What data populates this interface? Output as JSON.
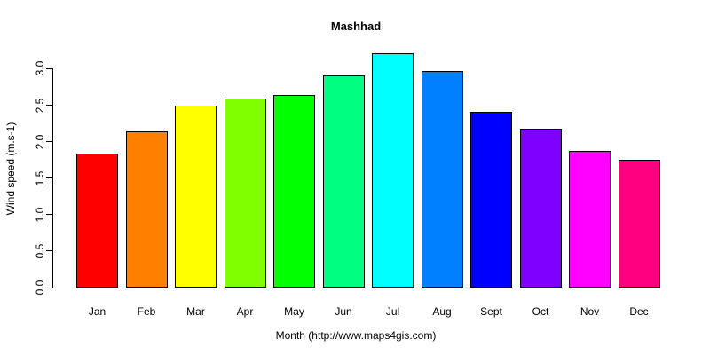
{
  "chart_data": {
    "type": "bar",
    "title": "Mashhad",
    "xlabel": "Month (http://www.maps4gis.com)",
    "ylabel": "Wind speed (m.s-1)",
    "categories": [
      "Jan",
      "Feb",
      "Mar",
      "Apr",
      "May",
      "Jun",
      "Jul",
      "Aug",
      "Sept",
      "Oct",
      "Nov",
      "Dec"
    ],
    "values": [
      1.84,
      2.14,
      2.49,
      2.59,
      2.64,
      2.91,
      3.21,
      2.97,
      2.41,
      2.18,
      1.87,
      1.75
    ],
    "bar_colors": [
      "#FF0000",
      "#FF8000",
      "#FFFF00",
      "#80FF00",
      "#00FF00",
      "#00FF80",
      "#00FFFF",
      "#0080FF",
      "#0000FF",
      "#8000FF",
      "#FF00FF",
      "#FF0080"
    ],
    "bar_border_color": "#000000",
    "ylim": [
      0.0,
      3.0
    ],
    "yticks": [
      "0.0",
      "0.5",
      "1.0",
      "1.5",
      "2.0",
      "2.5",
      "3.0"
    ],
    "grid": false,
    "legend": "none",
    "background_color": "#FFFFFF",
    "text_color": "#000000"
  }
}
